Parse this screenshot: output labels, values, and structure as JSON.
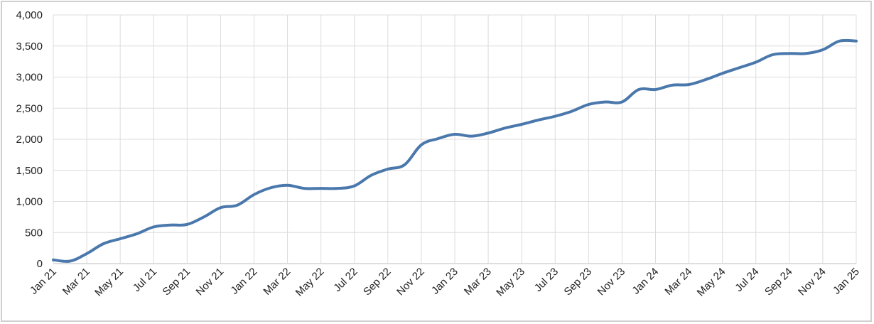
{
  "chart_data": {
    "type": "line",
    "title": "",
    "xlabel": "",
    "ylabel": "",
    "ylim": [
      0,
      4000
    ],
    "y_ticks": [
      "0",
      "500",
      "1,000",
      "1,500",
      "2,000",
      "2,500",
      "3,000",
      "3,500",
      "4,000"
    ],
    "x_tick_labels": [
      "Jan 21",
      "Mar 21",
      "May 21",
      "Jul 21",
      "Sep 21",
      "Nov 21",
      "Jan 22",
      "Mar 22",
      "May 22",
      "Jul 22",
      "Sep 22",
      "Nov 22",
      "Jan 23",
      "Mar 23",
      "May 23",
      "Jul 23",
      "Sep 23",
      "Nov 23",
      "Jan 24",
      "Mar 24",
      "May 24",
      "Jul 24",
      "Sep 24",
      "Nov 24",
      "Jan 25"
    ],
    "grid": true,
    "legend": "none",
    "x": [
      "Jan 21",
      "Feb 21",
      "Mar 21",
      "Apr 21",
      "May 21",
      "Jun 21",
      "Jul 21",
      "Aug 21",
      "Sep 21",
      "Oct 21",
      "Nov 21",
      "Dec 21",
      "Jan 22",
      "Feb 22",
      "Mar 22",
      "Apr 22",
      "May 22",
      "Jun 22",
      "Jul 22",
      "Aug 22",
      "Sep 22",
      "Oct 22",
      "Nov 22",
      "Dec 22",
      "Jan 23",
      "Feb 23",
      "Mar 23",
      "Apr 23",
      "May 23",
      "Jun 23",
      "Jul 23",
      "Aug 23",
      "Sep 23",
      "Oct 23",
      "Nov 23",
      "Dec 23",
      "Jan 24",
      "Feb 24",
      "Mar 24",
      "Apr 24",
      "May 24",
      "Jun 24",
      "Jul 24",
      "Aug 24",
      "Sep 24",
      "Oct 24",
      "Nov 24",
      "Dec 24",
      "Jan 25"
    ],
    "series": [
      {
        "color": "#4a78ac",
        "values": [
          60,
          40,
          160,
          320,
          400,
          480,
          590,
          620,
          630,
          750,
          900,
          940,
          1110,
          1220,
          1260,
          1210,
          1210,
          1210,
          1250,
          1420,
          1520,
          1590,
          1910,
          2010,
          2080,
          2050,
          2100,
          2180,
          2240,
          2310,
          2370,
          2450,
          2560,
          2600,
          2600,
          2800,
          2800,
          2870,
          2880,
          2960,
          3060,
          3150,
          3240,
          3360,
          3380,
          3380,
          3440,
          3580,
          3580
        ]
      }
    ]
  }
}
